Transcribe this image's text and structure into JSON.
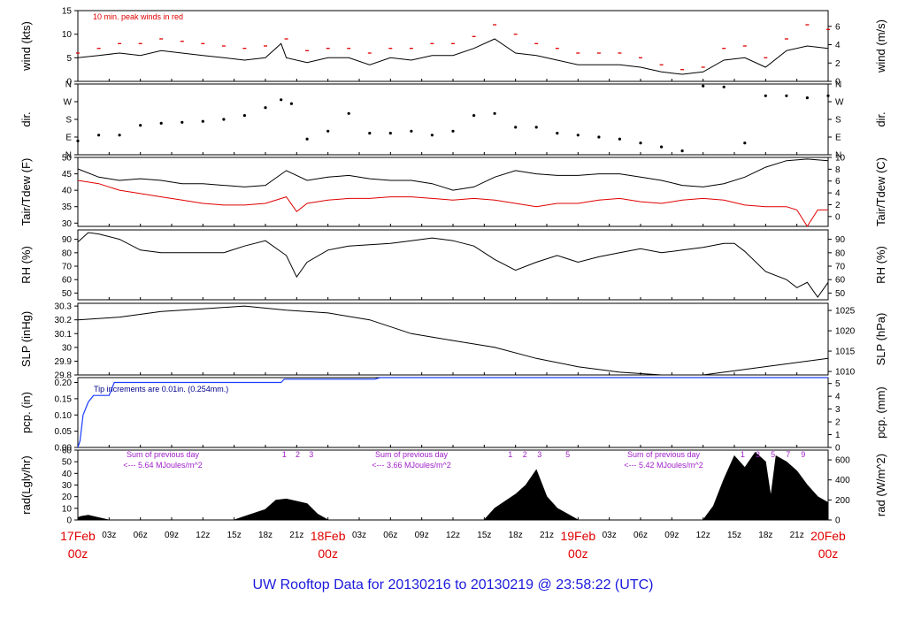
{
  "colors": {
    "line": "#000000",
    "dewpoint": "#e00000",
    "peak": "#e00000",
    "precip": "#1a3cff",
    "rad_notes": "#a020c8",
    "day_labels": "#e00000",
    "footer": "#1a1adc",
    "note_precip": "#00008b"
  },
  "footer_title": "UW Rooftop Data for 20130216  to  20130219 @ 23:58:22  (UTC)",
  "x_axis": {
    "hour_ticks": [
      "03z",
      "06z",
      "09z",
      "12z",
      "15z",
      "18z",
      "21z",
      "03z",
      "06z",
      "09z",
      "12z",
      "15z",
      "18z",
      "21z",
      "03z",
      "06z",
      "09z",
      "12z",
      "15z",
      "18z",
      "21z"
    ],
    "day_labels": [
      {
        "date": "17Feb",
        "time": "00z"
      },
      {
        "date": "18Feb",
        "time": "00z"
      },
      {
        "date": "19Feb",
        "time": "00z"
      },
      {
        "date": "20Feb",
        "time": "00z"
      }
    ],
    "range_hours": [
      0,
      72
    ]
  },
  "chart_data": [
    {
      "type": "line",
      "id": "wind",
      "ylabel_left": "wind (kts)",
      "ylabel_right": "wind (m/s)",
      "ylim": [
        0,
        15
      ],
      "left_ticks": [
        0,
        5,
        10,
        15
      ],
      "right_ticks": [
        0,
        2,
        4,
        6
      ],
      "annotation": "10 min. peak winds in red",
      "series": [
        {
          "name": "wind",
          "color": "#000000",
          "x": [
            0,
            2,
            4,
            6,
            8,
            10,
            12,
            14,
            16,
            18,
            19.5,
            20,
            22,
            24,
            26,
            28,
            30,
            32,
            34,
            36,
            38,
            40,
            42,
            44,
            46,
            48,
            50,
            52,
            54,
            56,
            58,
            60,
            62,
            64,
            66,
            68,
            70,
            72
          ],
          "y": [
            5,
            5.5,
            6,
            5.5,
            6.5,
            6,
            5.5,
            5,
            4.5,
            5,
            8,
            5,
            4,
            5,
            5,
            3.5,
            5,
            4.5,
            5.5,
            5.5,
            7,
            9,
            6,
            5.5,
            4.5,
            3.5,
            3.5,
            3.5,
            3,
            2,
            1.5,
            2,
            4.5,
            5,
            3,
            6.5,
            7.5,
            7
          ]
        },
        {
          "name": "peak",
          "color": "#e00000",
          "x": [
            0,
            2,
            4,
            6,
            8,
            10,
            12,
            14,
            16,
            18,
            20,
            22,
            24,
            26,
            28,
            30,
            32,
            34,
            36,
            38,
            40,
            42,
            44,
            46,
            48,
            50,
            52,
            54,
            56,
            58,
            60,
            62,
            64,
            66,
            68,
            70,
            72
          ],
          "y": [
            6,
            7,
            8,
            8,
            9,
            8.5,
            8,
            7.5,
            7,
            7.5,
            9,
            6.5,
            7,
            7,
            6,
            7,
            7,
            8,
            8,
            9.5,
            12,
            10,
            8,
            7,
            6,
            6,
            6,
            5,
            3.5,
            2.5,
            3,
            7,
            7.5,
            5,
            9,
            12,
            11
          ]
        }
      ]
    },
    {
      "type": "scatter",
      "id": "direction",
      "ylabel_left": "dir.",
      "ylabel_right": "dir.",
      "y_categories": [
        "N",
        "E",
        "S",
        "W",
        "N"
      ],
      "ylim": [
        0,
        360
      ],
      "series": [
        {
          "name": "direction",
          "color": "#000000",
          "x": [
            0,
            2,
            4,
            6,
            8,
            10,
            12,
            14,
            16,
            18,
            19.5,
            20.5,
            22,
            24,
            26,
            28,
            30,
            32,
            34,
            36,
            38,
            40,
            42,
            44,
            46,
            48,
            50,
            52,
            54,
            56,
            58,
            60,
            62,
            64,
            66,
            68,
            70,
            72
          ],
          "y": [
            70,
            100,
            100,
            150,
            160,
            165,
            170,
            180,
            200,
            240,
            280,
            260,
            80,
            120,
            210,
            110,
            110,
            120,
            100,
            120,
            200,
            210,
            140,
            140,
            110,
            100,
            90,
            80,
            60,
            40,
            20,
            350,
            345,
            60,
            300,
            300,
            290,
            300
          ]
        }
      ]
    },
    {
      "type": "line",
      "id": "temperature",
      "ylabel_left": "Tair/Tdew (F)",
      "ylabel_right": "Tair/Tdew (C)",
      "ylim": [
        29,
        50
      ],
      "left_ticks": [
        30,
        35,
        40,
        45,
        50
      ],
      "right_ticks": [
        0,
        2,
        4,
        6,
        8,
        10
      ],
      "series": [
        {
          "name": "Tair",
          "color": "#000000",
          "x": [
            0,
            2,
            4,
            6,
            8,
            10,
            12,
            14,
            16,
            18,
            20,
            22,
            24,
            26,
            28,
            30,
            32,
            34,
            36,
            38,
            40,
            42,
            44,
            46,
            48,
            50,
            52,
            54,
            56,
            58,
            60,
            62,
            64,
            66,
            68,
            70,
            72
          ],
          "y": [
            46.5,
            44,
            43,
            43.5,
            43,
            42,
            42,
            41.5,
            41,
            41.5,
            46,
            43,
            44,
            44.5,
            43.5,
            43,
            43,
            42,
            40,
            41,
            44,
            46,
            45,
            44.5,
            44.5,
            45,
            45,
            44,
            43,
            41.5,
            41,
            42,
            44,
            47,
            49,
            49.5,
            49
          ]
        },
        {
          "name": "Tdew",
          "color": "#e00000",
          "x": [
            0,
            2,
            4,
            6,
            8,
            10,
            12,
            14,
            16,
            18,
            20,
            21,
            22,
            24,
            26,
            28,
            30,
            32,
            34,
            36,
            38,
            40,
            42,
            44,
            46,
            48,
            50,
            52,
            54,
            56,
            58,
            60,
            62,
            64,
            66,
            68,
            69,
            70,
            71,
            72
          ],
          "y": [
            43,
            42,
            40,
            39,
            38,
            37,
            36,
            35.5,
            35.5,
            36,
            38,
            33.5,
            36,
            37,
            37.5,
            37.5,
            38,
            38,
            37.5,
            37,
            37.5,
            37,
            36,
            35,
            36,
            36,
            37,
            37.5,
            36.5,
            36,
            37,
            37.5,
            37,
            35.5,
            35,
            35,
            34,
            29,
            34,
            34
          ]
        }
      ]
    },
    {
      "type": "line",
      "id": "humidity",
      "ylabel_left": "RH (%)",
      "ylabel_right": "RH (%)",
      "ylim": [
        45,
        97
      ],
      "left_ticks": [
        50,
        60,
        70,
        80,
        90
      ],
      "right_ticks": [
        50,
        60,
        70,
        80,
        90
      ],
      "series": [
        {
          "name": "RH",
          "color": "#000000",
          "x": [
            0,
            1,
            2,
            4,
            6,
            8,
            10,
            12,
            14,
            16,
            18,
            20,
            21,
            22,
            24,
            26,
            28,
            30,
            32,
            34,
            36,
            38,
            40,
            42,
            44,
            46,
            48,
            50,
            52,
            54,
            56,
            58,
            60,
            62,
            63,
            64,
            66,
            68,
            69,
            70,
            71,
            72
          ],
          "y": [
            88,
            95,
            94,
            90,
            82,
            80,
            80,
            80,
            80,
            85,
            89,
            78,
            62,
            73,
            82,
            85,
            86,
            87,
            89,
            91,
            89,
            85,
            75,
            67,
            73,
            78,
            73,
            77,
            80,
            83,
            80,
            82,
            84,
            87,
            87,
            81,
            66,
            60,
            54,
            58,
            47,
            58
          ]
        }
      ]
    },
    {
      "type": "line",
      "id": "pressure",
      "ylabel_left": "SLP (inHg)",
      "ylabel_right": "SLP (hPa)",
      "ylim": [
        29.8,
        30.32
      ],
      "left_ticks": [
        29.8,
        29.9,
        30.0,
        30.1,
        30.2,
        30.3
      ],
      "right_ticks": [
        1010,
        1015,
        1020,
        1025
      ],
      "series": [
        {
          "name": "SLP",
          "color": "#000000",
          "x": [
            0,
            4,
            8,
            12,
            16,
            20,
            24,
            28,
            32,
            36,
            40,
            44,
            48,
            52,
            56,
            60,
            64,
            68,
            72
          ],
          "y": [
            30.2,
            30.22,
            30.26,
            30.28,
            30.3,
            30.27,
            30.25,
            30.2,
            30.1,
            30.05,
            30,
            29.92,
            29.86,
            29.82,
            29.8,
            29.8,
            29.84,
            29.88,
            29.92
          ]
        }
      ]
    },
    {
      "type": "area",
      "id": "precip",
      "ylabel_left": "pcp. (in)",
      "ylabel_right": "pcp. (mm)",
      "ylim": [
        0,
        0.215
      ],
      "left_ticks": [
        0.0,
        0.05,
        0.1,
        0.15,
        0.2
      ],
      "left_tick_labels": [
        "0.00",
        "0.05",
        "0.10",
        "0.15",
        "0.20"
      ],
      "right_ticks": [
        0,
        1,
        2,
        3,
        4,
        5
      ],
      "annotation": "Tip increments are 0.01in. (0.254mm.)",
      "series": [
        {
          "name": "pcp",
          "color": "#1a3cff",
          "x": [
            0,
            0.2,
            0.5,
            1,
            1.5,
            3,
            3.5,
            12,
            18,
            19.5,
            19.8,
            28.5,
            29,
            72
          ],
          "y": [
            0,
            0.02,
            0.1,
            0.14,
            0.16,
            0.16,
            0.2,
            0.2,
            0.2,
            0.2,
            0.21,
            0.21,
            0.215,
            0.215
          ]
        }
      ]
    },
    {
      "type": "area",
      "id": "radiation",
      "ylabel_left": "rad(Lgly/hr)",
      "ylabel_right": "rad (W/m^2)",
      "ylim": [
        0,
        60
      ],
      "left_ticks": [
        0,
        10,
        20,
        30,
        40,
        50,
        60
      ],
      "right_ticks": [
        0,
        200,
        400,
        600
      ],
      "day_notes": [
        {
          "title": "Sum of previous day",
          "value": "<--- 5.64 MJoules/m^2"
        },
        {
          "title": "Sum of previous day",
          "value": "<--- 3.66 MJoules/m^2"
        },
        {
          "title": "Sum of previous day",
          "value": "<--- 5.42 MJoules/m^2"
        }
      ],
      "hour_markers": [
        "1",
        "2",
        "3",
        "1",
        "2",
        "3",
        "5",
        "1",
        "3",
        "5",
        "7",
        "9"
      ],
      "series": [
        {
          "name": "rad",
          "color": "#000000",
          "x": [
            0,
            0.3,
            1,
            2,
            3,
            15,
            16,
            18,
            19,
            20,
            21,
            22,
            23,
            24,
            39,
            40,
            42,
            43,
            44,
            45,
            46,
            47,
            48,
            60,
            61,
            62,
            63,
            64,
            65,
            66,
            66.5,
            67,
            68,
            69,
            70,
            71,
            72
          ],
          "y": [
            2,
            3,
            4,
            2,
            0,
            0,
            3,
            9,
            17,
            18,
            16,
            14,
            5,
            0,
            0,
            10,
            22,
            30,
            43,
            20,
            10,
            5,
            0,
            0,
            12,
            35,
            55,
            45,
            58,
            50,
            20,
            55,
            50,
            42,
            30,
            20,
            15
          ]
        }
      ]
    }
  ]
}
